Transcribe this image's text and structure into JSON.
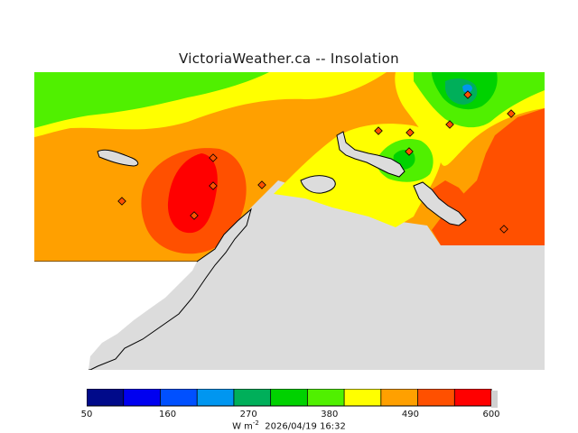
{
  "title": "VictoriaWeather.ca -- Insolation",
  "colorbar": {
    "colors": [
      "#000a8a",
      "#0000f0",
      "#0050ff",
      "#0096f0",
      "#00af5a",
      "#00d200",
      "#50f000",
      "#ffff00",
      "#ffa000",
      "#ff5000",
      "#ff0000"
    ],
    "tick_labels": [
      "50",
      "160",
      "270",
      "380",
      "490",
      "600"
    ],
    "unit": "W m",
    "unit_exp": "-2",
    "timestamp": "2026/04/19 16:32"
  },
  "map": {
    "background_land_color": "#dcdcdc",
    "coast_color": "#000000",
    "station_count": 12,
    "contour_scale": "insolation"
  }
}
